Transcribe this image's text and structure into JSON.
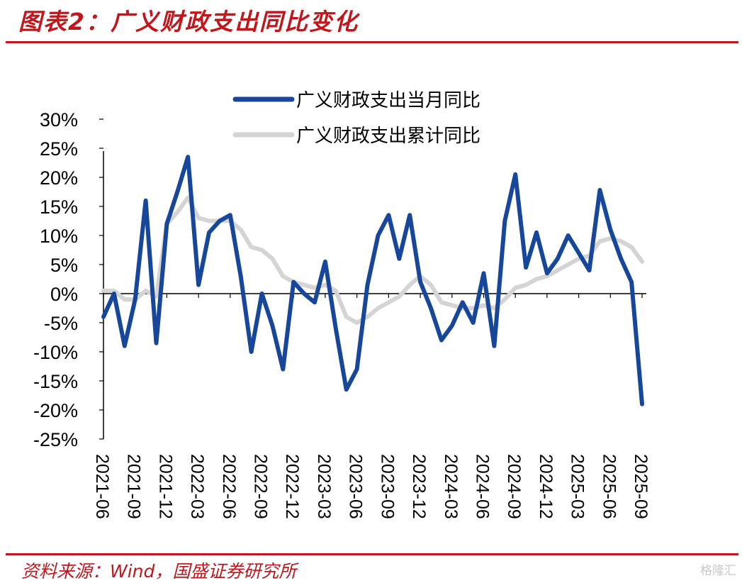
{
  "header": {
    "title": "图表2：广义财政支出同比变化"
  },
  "footer": {
    "source": "资料来源：Wind，国盛证券研究所",
    "watermark": "格隆汇"
  },
  "colors": {
    "accent": "#c0161c",
    "series_monthly": "#16479a",
    "series_cumulative": "#d4d4d4"
  },
  "chart_data": {
    "type": "line",
    "title": "",
    "xlabel": "",
    "ylabel": "",
    "ylim": [
      -0.25,
      0.3
    ],
    "ytick_values": [
      0.3,
      0.25,
      0.2,
      0.15,
      0.1,
      0.05,
      0.0,
      -0.05,
      -0.1,
      -0.15,
      -0.2,
      -0.25
    ],
    "yticks": [
      "30%",
      "25%",
      "20%",
      "15%",
      "10%",
      "5%",
      "0%",
      "-5%",
      "-10%",
      "-15%",
      "-20%",
      "-25%"
    ],
    "x": [
      "2021-06",
      "2021-07",
      "2021-08",
      "2021-09",
      "2021-10",
      "2021-11",
      "2021-12",
      "2022-01",
      "2022-02",
      "2022-03",
      "2022-04",
      "2022-05",
      "2022-06",
      "2022-07",
      "2022-08",
      "2022-09",
      "2022-10",
      "2022-11",
      "2022-12",
      "2023-01",
      "2023-02",
      "2023-03",
      "2023-04",
      "2023-05",
      "2023-06",
      "2023-07",
      "2023-08",
      "2023-09",
      "2023-10",
      "2023-11",
      "2023-12",
      "2024-01",
      "2024-02",
      "2024-03",
      "2024-04",
      "2024-05",
      "2024-06",
      "2024-07",
      "2024-08",
      "2024-09",
      "2024-10",
      "2024-11",
      "2024-12",
      "2025-01",
      "2025-02",
      "2025-03",
      "2025-04",
      "2025-05",
      "2025-06",
      "2025-07",
      "2025-08",
      "2025-09"
    ],
    "xticks": [
      "2021-06",
      "2021-09",
      "2021-12",
      "2022-03",
      "2022-06",
      "2022-09",
      "2022-12",
      "2023-03",
      "2023-06",
      "2023-09",
      "2023-12",
      "2024-03",
      "2024-06",
      "2024-09",
      "2024-12",
      "2025-03",
      "2025-06",
      "2025-09"
    ],
    "legend_position": "top",
    "grid": false,
    "series": [
      {
        "name": "广义财政支出当月同比",
        "values": [
          -0.04,
          0.0,
          -0.09,
          -0.01,
          0.16,
          -0.085,
          0.12,
          0.175,
          0.235,
          0.015,
          0.105,
          0.125,
          0.135,
          0.03,
          -0.1,
          0.0,
          -0.055,
          -0.13,
          0.02,
          0.0,
          -0.015,
          0.055,
          -0.06,
          -0.165,
          -0.13,
          0.015,
          0.1,
          0.135,
          0.06,
          0.135,
          0.02,
          -0.025,
          -0.08,
          -0.055,
          -0.015,
          -0.05,
          0.035,
          -0.09,
          0.125,
          0.205,
          0.045,
          0.105,
          0.035,
          0.06,
          0.1,
          0.07,
          0.04,
          0.178,
          0.11,
          0.06,
          0.02,
          -0.19
        ]
      },
      {
        "name": "广义财政支出累计同比",
        "values": [
          0.005,
          0.005,
          -0.01,
          -0.01,
          0.005,
          -0.005,
          0.12,
          0.14,
          0.165,
          0.13,
          0.125,
          0.125,
          0.125,
          0.11,
          0.08,
          0.075,
          0.06,
          0.03,
          0.02,
          0.015,
          0.01,
          0.015,
          0.005,
          -0.04,
          -0.05,
          -0.04,
          -0.025,
          -0.015,
          -0.005,
          0.015,
          0.03,
          0.015,
          -0.015,
          -0.02,
          -0.025,
          -0.025,
          -0.02,
          -0.025,
          -0.01,
          0.01,
          0.015,
          0.025,
          0.03,
          0.04,
          0.05,
          0.06,
          0.065,
          0.09,
          0.095,
          0.09,
          0.08,
          0.055
        ]
      }
    ]
  }
}
